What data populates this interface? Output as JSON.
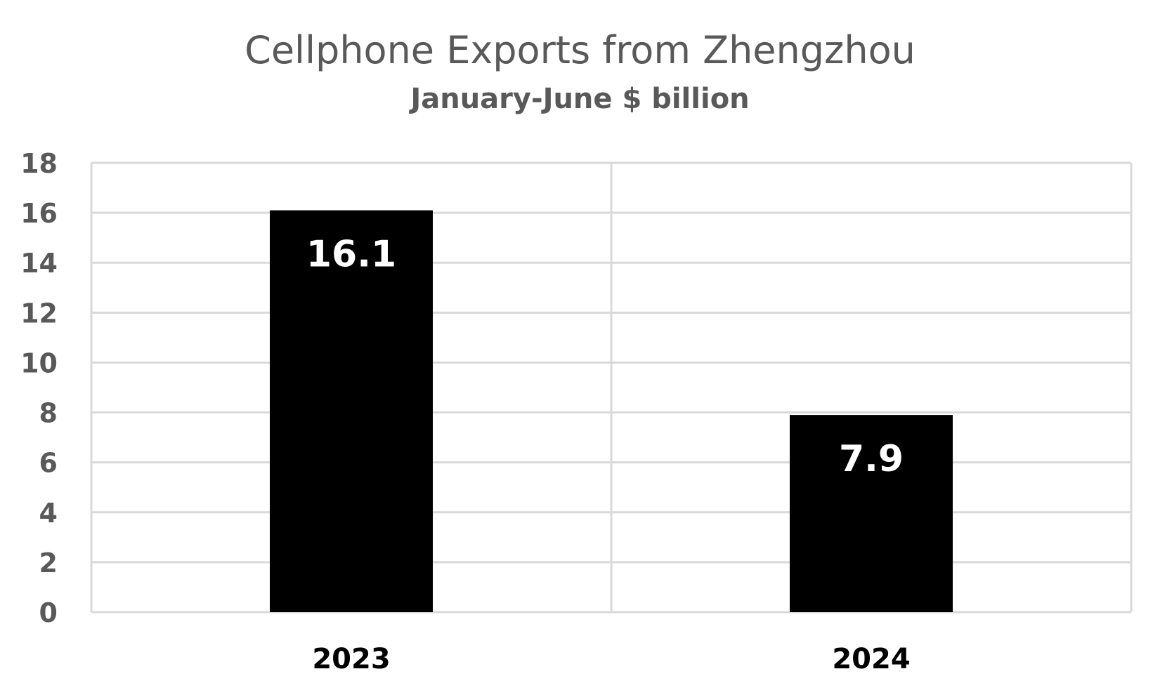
{
  "chart_data": {
    "type": "bar",
    "title": "Cellphone Exports from Zhengzhou",
    "subtitle": "January-June $ billion",
    "categories": [
      "2023",
      "2024"
    ],
    "values": [
      16.1,
      7.9
    ],
    "data_labels": [
      "16.1",
      "7.9"
    ],
    "ylim": [
      0,
      18
    ],
    "yticks": [
      "0",
      "2",
      "4",
      "6",
      "8",
      "10",
      "12",
      "14",
      "16",
      "18"
    ],
    "grid": true,
    "legend": "none",
    "colors": {
      "bar": "#000000",
      "grid": "#d9d9d9",
      "axis_text": "#595959",
      "category_text": "#000000",
      "data_label": "#ffffff"
    }
  }
}
